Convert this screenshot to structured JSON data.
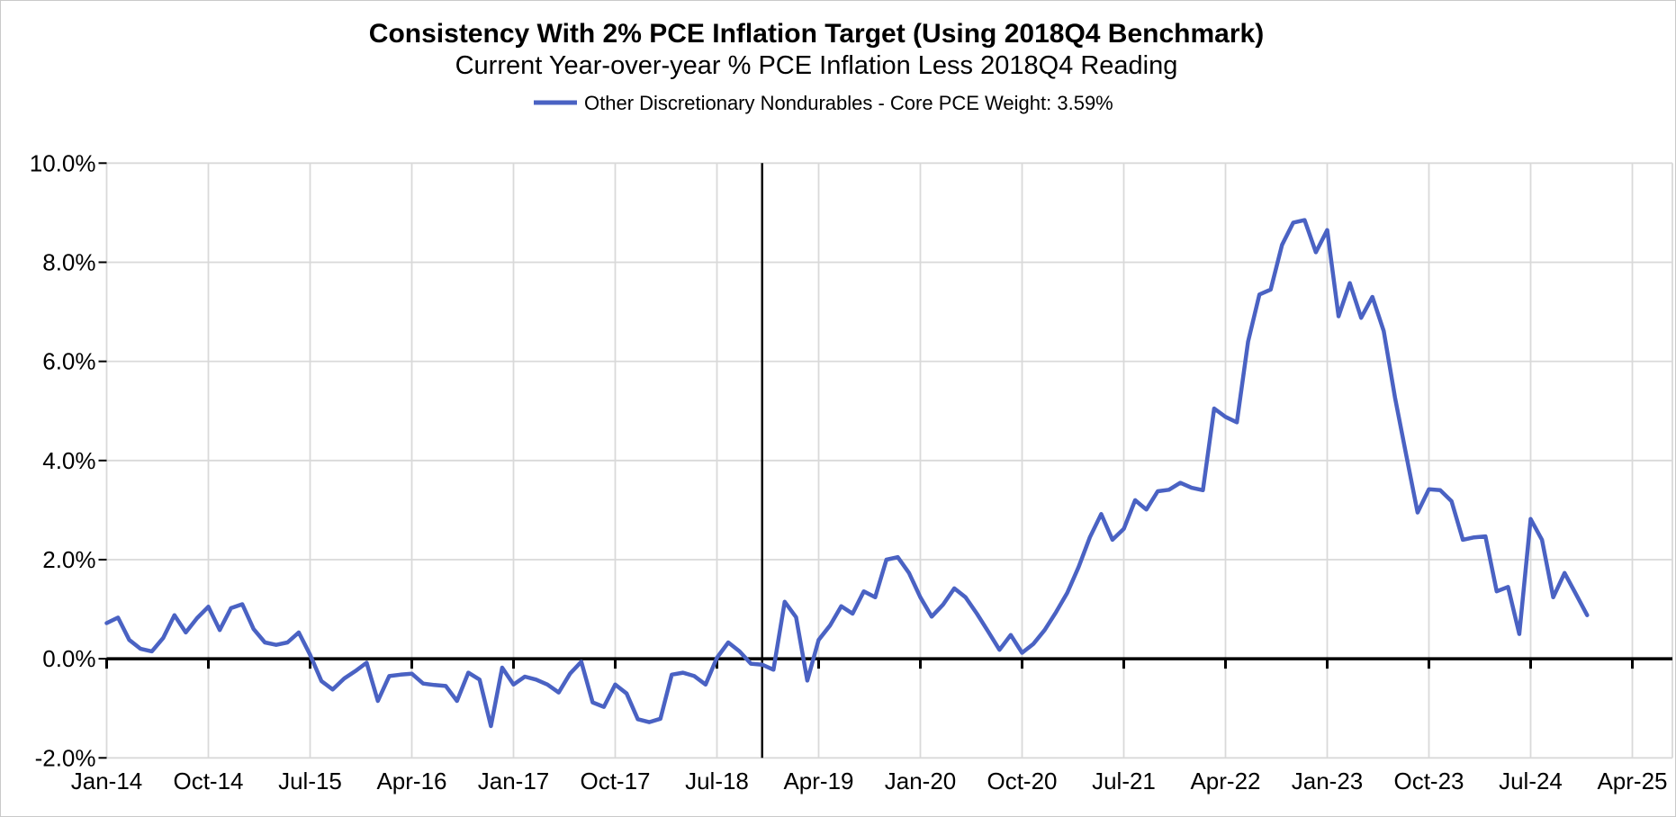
{
  "chart_data": {
    "type": "line",
    "title": "Consistency With 2% PCE Inflation Target (Using 2018Q4 Benchmark)",
    "subtitle": "Current Year-over-year % PCE Inflation Less 2018Q4 Reading",
    "legend": {
      "position": "top-center",
      "entries": [
        {
          "label": "Other Discretionary Nondurables - Core PCE Weight: 3.59%",
          "color": "#4a62c3"
        }
      ]
    },
    "x_axis": {
      "start_month": "Jan-14",
      "end_month": "Dec-24",
      "frequency": "monthly",
      "tick_labels": [
        "Jan-14",
        "Oct-14",
        "Jul-15",
        "Apr-16",
        "Jan-17",
        "Oct-17",
        "Jul-18",
        "Apr-19",
        "Jan-20",
        "Oct-20",
        "Jul-21",
        "Apr-22",
        "Jan-23",
        "Oct-23",
        "Jul-24",
        "Apr-25"
      ],
      "tick_month_indices": [
        0,
        9,
        18,
        27,
        36,
        45,
        54,
        63,
        72,
        81,
        90,
        99,
        108,
        117,
        126,
        135
      ],
      "axis_position_value": 0
    },
    "y_axis": {
      "tick_labels": [
        "10.0%",
        "8.0%",
        "6.0%",
        "4.0%",
        "2.0%",
        "0.0%",
        "-2.0%"
      ],
      "tick_values": [
        10,
        8,
        6,
        4,
        2,
        0,
        -2
      ],
      "ylim": [
        -2,
        10
      ],
      "unit": "%"
    },
    "grid": {
      "shown": true,
      "color": "#d9d9d9"
    },
    "zero_axis_color": "#000000",
    "benchmark_line": {
      "x_month": "Nov-18",
      "x_index": 58,
      "color": "#000000"
    },
    "series": [
      {
        "name": "Other Discretionary Nondurables - Core PCE Weight: 3.59%",
        "color": "#4a62c3",
        "values": [
          0.72,
          0.83,
          0.38,
          0.2,
          0.15,
          0.42,
          0.88,
          0.53,
          0.82,
          1.05,
          0.58,
          1.02,
          1.1,
          0.6,
          0.33,
          0.28,
          0.33,
          0.53,
          0.08,
          -0.45,
          -0.62,
          -0.4,
          -0.25,
          -0.08,
          -0.85,
          -0.35,
          -0.32,
          -0.3,
          -0.5,
          -0.53,
          -0.55,
          -0.85,
          -0.28,
          -0.42,
          -1.36,
          -0.18,
          -0.52,
          -0.36,
          -0.42,
          -0.52,
          -0.68,
          -0.3,
          -0.06,
          -0.88,
          -0.97,
          -0.52,
          -0.7,
          -1.22,
          -1.28,
          -1.21,
          -0.32,
          -0.28,
          -0.35,
          -0.52,
          0.02,
          0.33,
          0.15,
          -0.1,
          -0.12,
          -0.22,
          1.15,
          0.84,
          -0.44,
          0.38,
          0.67,
          1.06,
          0.91,
          1.36,
          1.24,
          2.0,
          2.05,
          1.73,
          1.24,
          0.85,
          1.09,
          1.42,
          1.24,
          0.91,
          0.55,
          0.18,
          0.48,
          0.12,
          0.3,
          0.58,
          0.94,
          1.33,
          1.85,
          2.45,
          2.92,
          2.4,
          2.62,
          3.2,
          3.01,
          3.38,
          3.41,
          3.55,
          3.45,
          3.4,
          5.05,
          4.88,
          4.77,
          6.4,
          7.35,
          7.45,
          8.35,
          8.8,
          8.85,
          8.2,
          8.65,
          6.91,
          7.58,
          6.88,
          7.3,
          6.61,
          5.27,
          4.1,
          2.95,
          3.42,
          3.4,
          3.18,
          2.4,
          2.45,
          2.47,
          1.36,
          1.45,
          0.5,
          2.82,
          2.4,
          1.24,
          1.73,
          1.31,
          0.88
        ]
      }
    ]
  }
}
